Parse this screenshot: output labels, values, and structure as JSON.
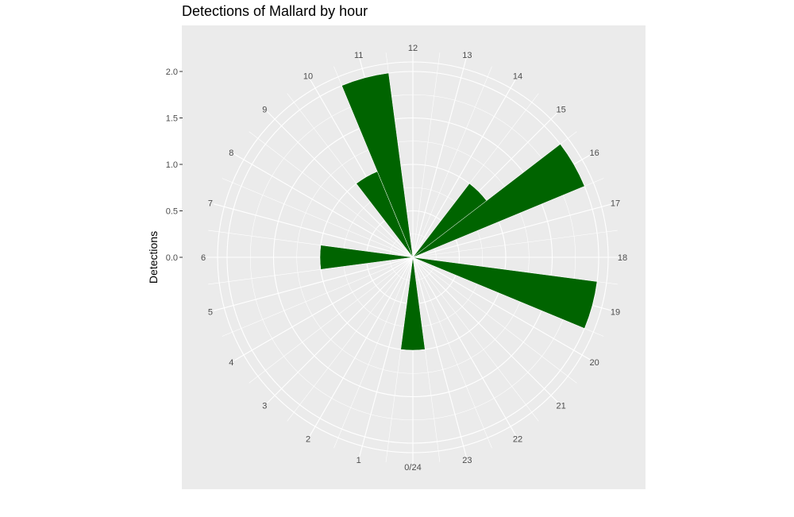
{
  "chart_data": {
    "type": "bar",
    "coordinate_system": "polar",
    "title": "Detections of Mallard by hour",
    "xlabel": "",
    "ylabel": "Detections",
    "categories": [
      "0/24",
      "1",
      "2",
      "3",
      "4",
      "5",
      "6",
      "7",
      "8",
      "9",
      "10",
      "11",
      "12",
      "13",
      "14",
      "15",
      "16",
      "17",
      "18",
      "19",
      "20",
      "21",
      "22",
      "23"
    ],
    "values": [
      1,
      0,
      0,
      0,
      0,
      0,
      1,
      0,
      0,
      0,
      1,
      2,
      0,
      0,
      0,
      1,
      2,
      0,
      0,
      2,
      0,
      0,
      0,
      0
    ],
    "y_ticks": [
      "0.0",
      "0.5",
      "1.0",
      "1.5",
      "2.0"
    ],
    "ylim": [
      0,
      2
    ],
    "bar_color": "#006400",
    "panel_background": "#ebebeb",
    "grid": true,
    "legend": "none"
  }
}
